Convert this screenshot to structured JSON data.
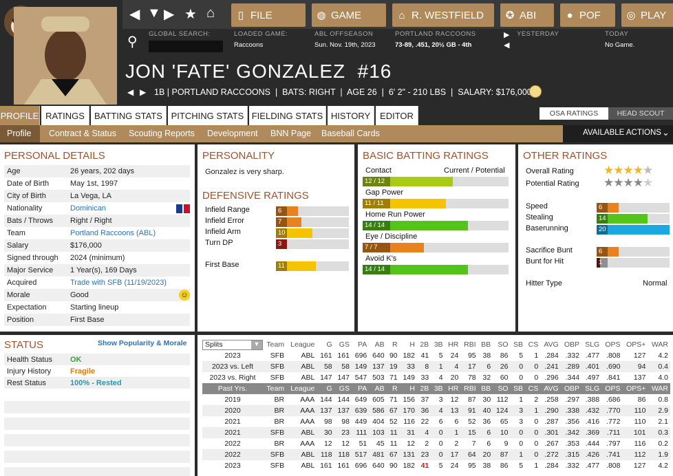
{
  "nav": {
    "file": "FILE",
    "game": "GAME",
    "team": "R. WESTFIELD",
    "abl": "ABI",
    "por": "POF",
    "play": "PLAY"
  },
  "info": {
    "search_label": "GLOBAL SEARCH:",
    "loaded_label": "LOADED GAME:",
    "loaded_val": "Raccoons",
    "offseason_label": "ABL OFFSEASON",
    "offseason_val": "Sun. Nov. 19th, 2023",
    "team_label": "PORTLAND RACCOONS",
    "team_val": "73-89, .451, 20½ GB - 4th",
    "yesterday_label": "YESTERDAY",
    "today_label": "TODAY",
    "today_val": "No Game."
  },
  "player": {
    "name": "JON 'FATE' GONZALEZ  #16",
    "sub": "1B | PORTLAND RACCOONS  |  BATS: RIGHT  |  AGE 26  |  6' 2\" - 210 LBS  |  SALARY: $176,000"
  },
  "tabs": [
    "PROFILE",
    "RATINGS",
    "BATTING STATS",
    "PITCHING STATS",
    "FIELDING STATS",
    "HISTORY",
    "EDITOR"
  ],
  "rating_toggle": {
    "osa": "OSA RATINGS",
    "scout": "HEAD SCOUT"
  },
  "subnav": [
    "Profile",
    "Contract & Status",
    "Scouting Reports",
    "Development",
    "BNN Page",
    "Baseball Cards"
  ],
  "actions": "AVAILABLE ACTIONS",
  "personal": {
    "title": "PERSONAL DETAILS",
    "rows": [
      [
        "Age",
        "26 years, 202 days"
      ],
      [
        "Date of Birth",
        "May 1st, 1997"
      ],
      [
        "City of Birth",
        "La Vega, LA"
      ],
      [
        "Nationality",
        "Dominican"
      ],
      [
        "Bats / Throws",
        "Right / Right"
      ],
      [
        "Team",
        "Portland Raccoons (ABL)"
      ],
      [
        "Salary",
        "$176,000"
      ],
      [
        "Signed through",
        "2024 (minimum)"
      ],
      [
        "Major Service",
        "1 Year(s), 169 Days"
      ],
      [
        "Acquired",
        "Trade with SFB (11/19/2023)"
      ],
      [
        "Morale",
        "Good"
      ],
      [
        "Expectation",
        "Starting lineup"
      ],
      [
        "Position",
        "First Base"
      ]
    ]
  },
  "personality": {
    "title": "PERSONALITY",
    "text": "Gonzalez is very sharp."
  },
  "defensive": {
    "title": "DEFENSIVE RATINGS",
    "items": [
      {
        "label": "Infield Range",
        "value": 6,
        "color": "#e8821e"
      },
      {
        "label": "Infield Error",
        "value": 7,
        "color": "#e8821e"
      },
      {
        "label": "Infield Arm",
        "value": 10,
        "color": "#f5c400"
      },
      {
        "label": "Turn DP",
        "value": 3,
        "color": "#d6251c"
      },
      {
        "label": "First Base",
        "value": 11,
        "color": "#f5c400"
      }
    ]
  },
  "batting": {
    "title": "BASIC BATTING RATINGS",
    "header": "Current / Potential",
    "items": [
      {
        "label": "Contact",
        "value": "12 / 12",
        "pct": 0.62,
        "color": "#a8cc16"
      },
      {
        "label": "Gap Power",
        "value": "11 / 11",
        "pct": 0.57,
        "color": "#f5c400"
      },
      {
        "label": "Home Run Power",
        "value": "14 / 14",
        "pct": 0.72,
        "color": "#54c41a"
      },
      {
        "label": "Eye / Discipline",
        "value": "7 / 7",
        "pct": 0.42,
        "color": "#e8821e"
      },
      {
        "label": "Avoid K's",
        "value": "14 / 14",
        "pct": 0.72,
        "color": "#54c41a"
      }
    ]
  },
  "other": {
    "title": "OTHER RATINGS",
    "overall_label": "Overall Rating",
    "overall_stars": 4.5,
    "potential_label": "Potential Rating",
    "potential_stars": 4.5,
    "items": [
      {
        "label": "Speed",
        "value": 6,
        "color": "#e8821e"
      },
      {
        "label": "Stealing",
        "value": 14,
        "color": "#54c41a"
      },
      {
        "label": "Baserunning",
        "value": 20,
        "color": "#1ba8e0"
      },
      {
        "label": "Sacrifice Bunt",
        "value": 6,
        "color": "#e8821e"
      },
      {
        "label": "Bunt for Hit",
        "value": 1,
        "color": "#8b1a1a"
      }
    ],
    "hitter_type_label": "Hitter Type",
    "hitter_type": "Normal"
  },
  "status": {
    "title": "STATUS",
    "link": "Show Popularity & Morale",
    "rows": [
      {
        "k": "Health Status",
        "v": "OK",
        "color": "#3aa03a"
      },
      {
        "k": "Injury History",
        "v": "Fragile",
        "color": "#e07b00"
      },
      {
        "k": "Rest Status",
        "v": "100% - Rested",
        "color": "#1d9ab5"
      }
    ]
  },
  "stats": {
    "split_label": "Splits",
    "cols": [
      "Team",
      "League",
      "G",
      "GS",
      "PA",
      "AB",
      "R",
      "H",
      "2B",
      "3B",
      "HR",
      "RBI",
      "BB",
      "SO",
      "SB",
      "CS",
      "AVG",
      "OBP",
      "SLG",
      "OPS",
      "OPS+",
      "WAR"
    ],
    "split_rows": [
      [
        "2023",
        "SFB",
        "ABL",
        "161",
        "161",
        "696",
        "640",
        "90",
        "182",
        "41",
        "5",
        "24",
        "95",
        "38",
        "86",
        "5",
        "1",
        ".284",
        ".332",
        ".477",
        ".808",
        "127",
        "4.2"
      ],
      [
        "2023 vs. Left",
        "SFB",
        "ABL",
        "58",
        "58",
        "149",
        "137",
        "19",
        "33",
        "8",
        "1",
        "4",
        "17",
        "6",
        "26",
        "0",
        "0",
        ".241",
        ".289",
        ".401",
        ".690",
        "94",
        "0.4"
      ],
      [
        "2023 vs. Right",
        "SFB",
        "ABL",
        "147",
        "147",
        "547",
        "503",
        "71",
        "149",
        "33",
        "4",
        "20",
        "78",
        "32",
        "60",
        "0",
        "0",
        ".296",
        ".344",
        ".497",
        ".841",
        "137",
        "4.0"
      ]
    ],
    "past_label": "Past Yrs.",
    "past_rows": [
      [
        "2019",
        "BR",
        "AAA",
        "144",
        "144",
        "649",
        "605",
        "71",
        "156",
        "37",
        "3",
        "12",
        "87",
        "30",
        "112",
        "1",
        "2",
        ".258",
        ".297",
        ".388",
        ".686",
        "86",
        "0.8"
      ],
      [
        "2020",
        "BR",
        "AAA",
        "137",
        "137",
        "639",
        "586",
        "67",
        "170",
        "36",
        "4",
        "13",
        "91",
        "40",
        "124",
        "3",
        "1",
        ".290",
        ".338",
        ".432",
        ".770",
        "110",
        "2.9"
      ],
      [
        "2021",
        "BR",
        "AAA",
        "98",
        "98",
        "449",
        "404",
        "52",
        "116",
        "22",
        "6",
        "6",
        "52",
        "36",
        "65",
        "3",
        "0",
        ".287",
        ".356",
        ".416",
        ".772",
        "110",
        "2.1"
      ],
      [
        "2021",
        "SFB",
        "ABL",
        "30",
        "23",
        "111",
        "103",
        "11",
        "31",
        "4",
        "0",
        "1",
        "15",
        "6",
        "10",
        "0",
        "0",
        ".301",
        ".342",
        ".369",
        ".711",
        "101",
        "0.3"
      ],
      [
        "2022",
        "BR",
        "AAA",
        "12",
        "12",
        "51",
        "45",
        "11",
        "12",
        "2",
        "0",
        "2",
        "7",
        "6",
        "9",
        "0",
        "0",
        ".267",
        ".353",
        ".444",
        ".797",
        "116",
        "0.2"
      ],
      [
        "2022",
        "SFB",
        "ABL",
        "118",
        "118",
        "517",
        "481",
        "67",
        "131",
        "23",
        "0",
        "17",
        "64",
        "20",
        "87",
        "1",
        "0",
        ".272",
        ".315",
        ".426",
        ".741",
        "112",
        "1.9"
      ],
      [
        "2023",
        "SFB",
        "ABL",
        "161",
        "161",
        "696",
        "640",
        "90",
        "182",
        "41",
        "5",
        "24",
        "95",
        "38",
        "86",
        "5",
        "1",
        ".284",
        ".332",
        ".477",
        ".808",
        "127",
        "4.2"
      ]
    ]
  }
}
